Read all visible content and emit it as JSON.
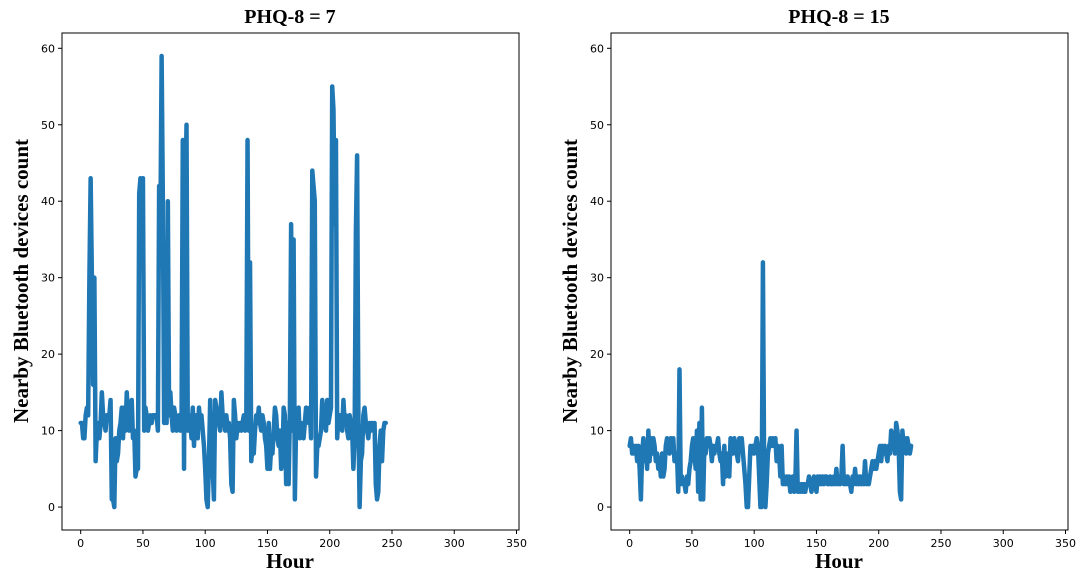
{
  "colors": {
    "series": "#1f77b4",
    "axis": "#000000"
  },
  "chart_data": [
    {
      "type": "line",
      "title": "PHQ-8 = 7",
      "xlabel": "Hour",
      "ylabel": "Nearby Bluetooth devices count",
      "xlim": [
        -15,
        352
      ],
      "ylim": [
        -3,
        62
      ],
      "xticks": [
        0,
        50,
        100,
        150,
        200,
        250,
        300,
        350
      ],
      "yticks": [
        0,
        10,
        20,
        30,
        40,
        50,
        60
      ],
      "grid": false,
      "series": [
        {
          "values": [
            11,
            11,
            9,
            9,
            12,
            13,
            12,
            30,
            43,
            30,
            16,
            30,
            6,
            10,
            11,
            9,
            11,
            15,
            12,
            11,
            10,
            12,
            12,
            12,
            14,
            1,
            1,
            0,
            9,
            6,
            7,
            10,
            11,
            13,
            9,
            13,
            10,
            15,
            12,
            10,
            12,
            14,
            9,
            10,
            4,
            5,
            5,
            41,
            43,
            37,
            43,
            10,
            13,
            12,
            10,
            11,
            12,
            11,
            12,
            12,
            12,
            12,
            10,
            42,
            36,
            59,
            40,
            11,
            12,
            11,
            40,
            12,
            15,
            12,
            10,
            13,
            12,
            10,
            11,
            12,
            10,
            11,
            48,
            5,
            40,
            50,
            10,
            12,
            11,
            9,
            13,
            8,
            12,
            11,
            9,
            13,
            11,
            12,
            10,
            8,
            5,
            1,
            0,
            6,
            14,
            7,
            5,
            1,
            14,
            13,
            12,
            11,
            10,
            15,
            12,
            12,
            10,
            12,
            10,
            11,
            9,
            3,
            2,
            14,
            12,
            9,
            11,
            10,
            11,
            10,
            11,
            12,
            10,
            11,
            48,
            10,
            32,
            6,
            8,
            7,
            10,
            12,
            11,
            13,
            11,
            10,
            12,
            11,
            9,
            8,
            5,
            11,
            5,
            8,
            7,
            10,
            13,
            12,
            9,
            8,
            10,
            5,
            6,
            13,
            12,
            3,
            11,
            3,
            12,
            37,
            10,
            35,
            1,
            11,
            10,
            13,
            9,
            11,
            10,
            9,
            11,
            13,
            12,
            11,
            13,
            9,
            44,
            42,
            40,
            4,
            8,
            8,
            9,
            10,
            14,
            12,
            11,
            10,
            14,
            11,
            12,
            13,
            55,
            52,
            37,
            48,
            9,
            12,
            12,
            11,
            10,
            14,
            11,
            12,
            10,
            9,
            12,
            11,
            10,
            5,
            9,
            36,
            46,
            12,
            0,
            6,
            7,
            12,
            13,
            11,
            10,
            9,
            11,
            10,
            11,
            10,
            11,
            3,
            1,
            2,
            8,
            10,
            6,
            10,
            11,
            11
          ]
        }
      ]
    },
    {
      "type": "line",
      "title": "PHQ-8 = 15",
      "xlabel": "Hour",
      "ylabel": "Nearby Bluetooth devices count",
      "xlim": [
        -15,
        352
      ],
      "ylim": [
        -3,
        62
      ],
      "xticks": [
        0,
        50,
        100,
        150,
        200,
        250,
        300,
        350
      ],
      "yticks": [
        0,
        10,
        20,
        30,
        40,
        50,
        60
      ],
      "grid": false,
      "series": [
        {
          "values": [
            8,
            9,
            7,
            8,
            7,
            8,
            6,
            8,
            5,
            1,
            7,
            9,
            6,
            8,
            5,
            10,
            6,
            9,
            7,
            9,
            8,
            6,
            7,
            5,
            6,
            4,
            7,
            4,
            5,
            8,
            9,
            8,
            7,
            9,
            8,
            9,
            6,
            7,
            7,
            2,
            18,
            3,
            4,
            3,
            3,
            2,
            4,
            3,
            5,
            6,
            8,
            9,
            7,
            5,
            10,
            2,
            11,
            1,
            13,
            1,
            8,
            7,
            9,
            8,
            9,
            8,
            6,
            8,
            7,
            8,
            8,
            9,
            7,
            6,
            7,
            3,
            8,
            4,
            5,
            7,
            4,
            9,
            8,
            7,
            9,
            8,
            7,
            6,
            9,
            8,
            9,
            7,
            5,
            3,
            0,
            0,
            4,
            8,
            7,
            8,
            7,
            8,
            9,
            8,
            4,
            0,
            0,
            32,
            4,
            0,
            3,
            7,
            8,
            9,
            8,
            9,
            8,
            9,
            6,
            8,
            7,
            4,
            8,
            3,
            4,
            3,
            4,
            3,
            4,
            2,
            3,
            4,
            2,
            3,
            10,
            2,
            3,
            2,
            3,
            2,
            3,
            2,
            3,
            3,
            4,
            3,
            2,
            3,
            4,
            3,
            2,
            4,
            3,
            4,
            3,
            4,
            3,
            4,
            4,
            3,
            3,
            4,
            3,
            3,
            4,
            3,
            5,
            3,
            4,
            3,
            4,
            8,
            3,
            4,
            3,
            4,
            3,
            3,
            2,
            4,
            3,
            5,
            3,
            4,
            3,
            4,
            3,
            4,
            3,
            6,
            3,
            4,
            3,
            4,
            5,
            6,
            5,
            6,
            5,
            6,
            7,
            8,
            6,
            8,
            7,
            8,
            7,
            6,
            8,
            7,
            10,
            8,
            9,
            7,
            11,
            10,
            8,
            2,
            1,
            10,
            8,
            9,
            7,
            9,
            8,
            7,
            8
          ]
        }
      ]
    }
  ]
}
